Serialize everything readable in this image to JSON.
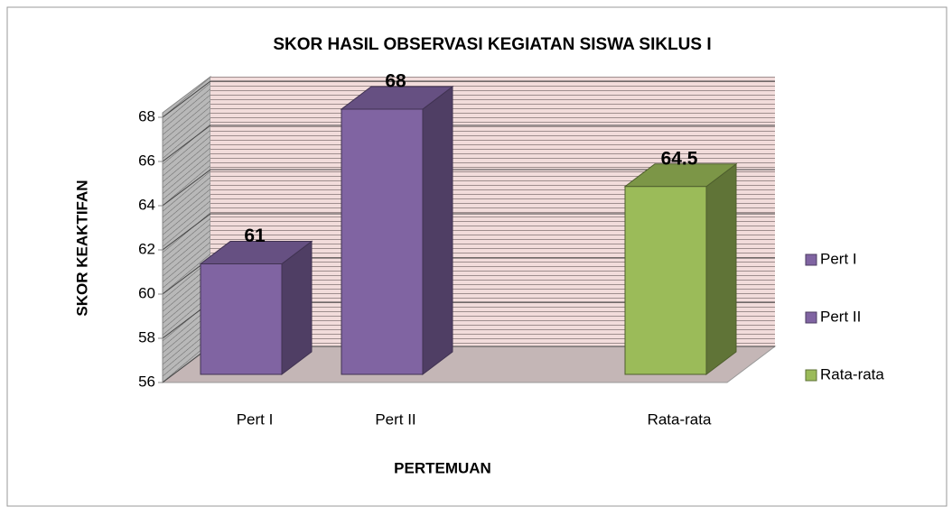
{
  "chart_data": {
    "type": "bar3d",
    "title": "SKOR HASIL OBSERVASI KEGIATAN SISWA SIKLUS I",
    "x_label": "PERTEMUAN",
    "y_label": "SKOR KEAKTIFAN",
    "categories": [
      "Pert I",
      "Pert II",
      "Rata-rata"
    ],
    "values": [
      61,
      68,
      64.5
    ],
    "colors": [
      "#8064a2",
      "#8064a2",
      "#9bbb59"
    ],
    "ylim": [
      56,
      68
    ],
    "yticks": [
      56,
      58,
      60,
      62,
      64,
      66,
      68
    ],
    "grid": true,
    "legend": "right"
  }
}
